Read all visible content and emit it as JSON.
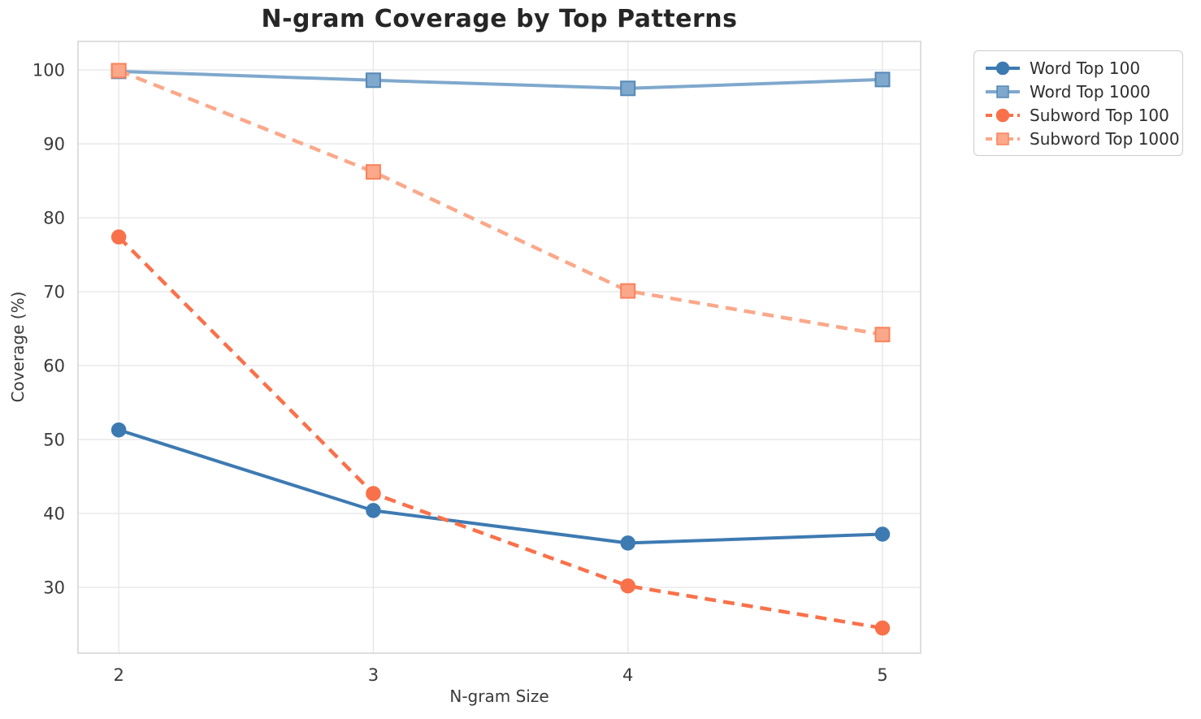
{
  "chart_data": {
    "type": "line",
    "title": "N-gram Coverage by Top Patterns",
    "xlabel": "N-gram Size",
    "ylabel": "Coverage (%)",
    "x": [
      2,
      3,
      4,
      5
    ],
    "xticks": [
      2,
      3,
      4,
      5
    ],
    "yticks": [
      30,
      40,
      50,
      60,
      70,
      80,
      90,
      100
    ],
    "xlim": [
      1.84,
      5.15
    ],
    "ylim": [
      21.1,
      103.85
    ],
    "grid": true,
    "grid_color": "#e7e7e7",
    "spine_color": "#d6d6d6",
    "legend_position": "outside-right",
    "series": [
      {
        "name": "Word Top 100",
        "values": [
          51.3,
          40.4,
          36.0,
          37.2
        ],
        "color": "#3D7AB2",
        "marker_fill": "#3D7AB2",
        "marker_edge": "#3D7AB2",
        "style": "solid",
        "marker": "circle"
      },
      {
        "name": "Word Top 1000",
        "values": [
          99.8,
          98.6,
          97.5,
          98.7
        ],
        "color": "#7FA8CD",
        "marker_fill": "#7FA8CD",
        "marker_edge": "#5688B5",
        "style": "solid",
        "marker": "square"
      },
      {
        "name": "Subword Top 100",
        "values": [
          77.4,
          42.7,
          30.2,
          24.5
        ],
        "color": "#F9714A",
        "marker_fill": "#F9714A",
        "marker_edge": "#F9714A",
        "style": "dashed",
        "marker": "circle"
      },
      {
        "name": "Subword Top 1000",
        "values": [
          99.9,
          86.2,
          70.1,
          64.2
        ],
        "color": "#FBA88A",
        "marker_fill": "#FBA88A",
        "marker_edge": "#F9825C",
        "style": "dashed",
        "marker": "square"
      }
    ]
  }
}
